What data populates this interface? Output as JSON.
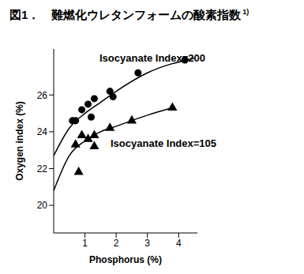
{
  "chart_data": {
    "type": "scatter",
    "title": "図1．　難燃化ウレタンフォームの酸素指数",
    "title_ref": "1)",
    "x_label": "Phosphorus (%)",
    "y_label": "Oxygen index (%)",
    "xlim": [
      0,
      4.6
    ],
    "ylim": [
      18.5,
      28.5
    ],
    "xticks": [
      1,
      2,
      3,
      4
    ],
    "yticks": [
      20,
      22,
      24,
      26
    ],
    "grid": false,
    "series": [
      {
        "name": "Isocyanate Index=200",
        "color": "#000000",
        "marker": "circle",
        "x": [
          0.6,
          0.7,
          0.9,
          1.1,
          1.2,
          1.3,
          1.8,
          1.9,
          2.7,
          4.2
        ],
        "values": [
          24.6,
          24.6,
          25.2,
          25.5,
          24.8,
          25.8,
          26.2,
          25.9,
          27.2,
          27.9
        ],
        "curve_x": [
          0,
          0.5,
          1,
          1.5,
          2,
          3,
          4.5
        ],
        "curve_values": [
          22.7,
          24.2,
          25.0,
          25.6,
          26.2,
          27.2,
          28.0
        ]
      },
      {
        "name": "Isocyanate Index=105",
        "color": "#000000",
        "marker": "triangle",
        "x": [
          0.7,
          0.8,
          0.9,
          1.1,
          1.3,
          1.3,
          1.8,
          2.5,
          3.8
        ],
        "values": [
          23.3,
          21.8,
          23.8,
          23.6,
          23.8,
          23.2,
          24.2,
          24.6,
          25.3
        ],
        "curve_x": [
          0,
          0.5,
          1,
          1.5,
          2,
          3,
          3.8
        ],
        "curve_values": [
          20.8,
          22.7,
          23.5,
          24.0,
          24.3,
          24.9,
          25.3
        ]
      }
    ]
  }
}
